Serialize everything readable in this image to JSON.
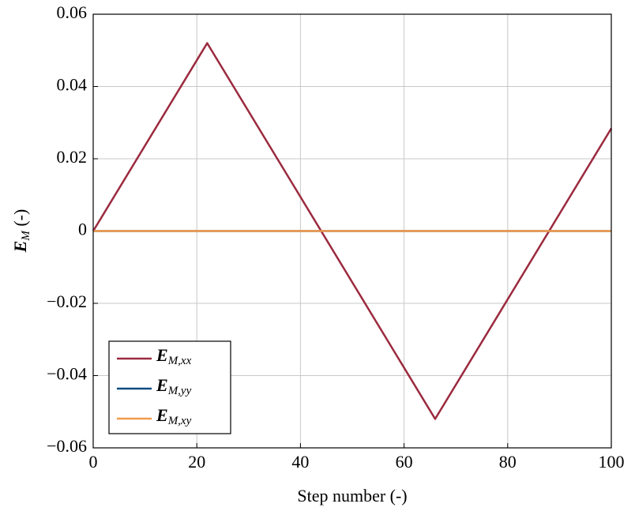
{
  "chart_data": {
    "type": "line",
    "xlabel": "Step number (-)",
    "ylabel": "EM (-)",
    "series": [
      {
        "name": "EM,xx",
        "color": "#9b2a3e",
        "x": [
          0,
          22,
          66,
          100
        ],
        "values": [
          0,
          0.052,
          -0.052,
          0.0284
        ]
      },
      {
        "name": "EM,yy",
        "color": "#0f4c81",
        "x": [
          0,
          100
        ],
        "values": [
          0,
          0
        ]
      },
      {
        "name": "EM,xy",
        "color": "#f39a4c",
        "x": [
          0,
          100
        ],
        "values": [
          0,
          0
        ]
      }
    ],
    "xlim": [
      0,
      100
    ],
    "xticks": [
      0,
      20,
      40,
      60,
      80,
      100
    ],
    "ylim": [
      -0.06,
      0.06
    ],
    "yticks": [
      {
        "value": -0.06,
        "label": "−0.06"
      },
      {
        "value": -0.04,
        "label": "−0.04"
      },
      {
        "value": -0.02,
        "label": "−0.02"
      },
      0,
      0.02,
      0.04,
      0.06
    ],
    "grid": true,
    "legend": "lower left"
  }
}
